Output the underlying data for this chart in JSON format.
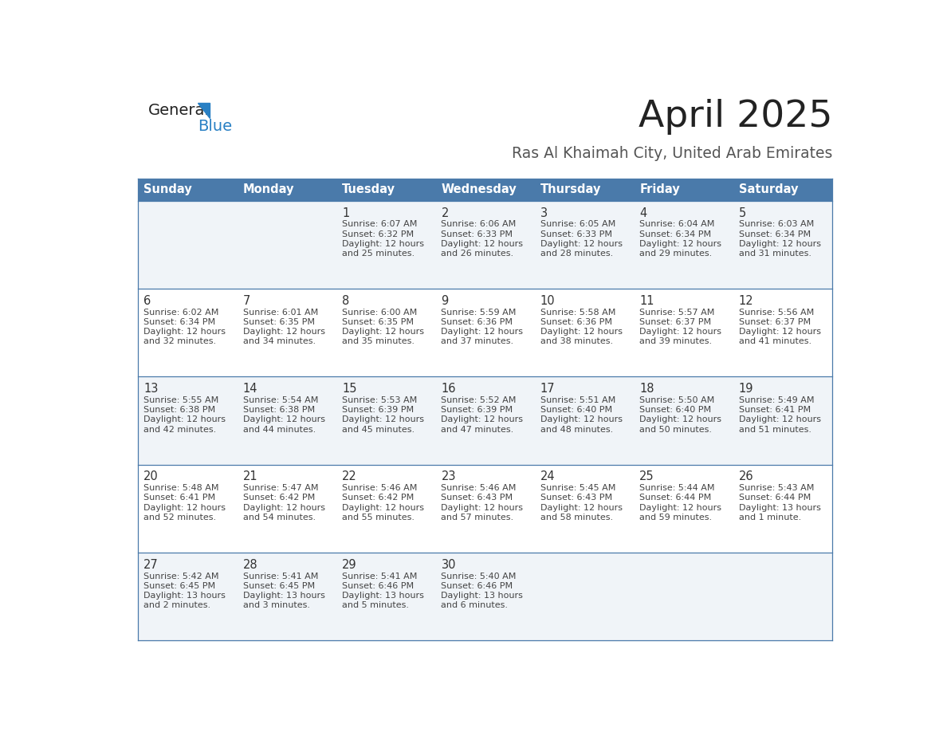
{
  "title": "April 2025",
  "subtitle": "Ras Al Khaimah City, United Arab Emirates",
  "days_of_week": [
    "Sunday",
    "Monday",
    "Tuesday",
    "Wednesday",
    "Thursday",
    "Friday",
    "Saturday"
  ],
  "header_bg": "#4a7aaa",
  "header_text": "#ffffff",
  "row_bg_odd": "#f0f4f8",
  "row_bg_even": "#ffffff",
  "cell_border": "#4a7aaa",
  "day_num_color": "#333333",
  "info_text_color": "#444444",
  "title_color": "#222222",
  "subtitle_color": "#555555",
  "logo_general_color": "#222222",
  "logo_blue_color": "#2980c4",
  "calendar_data": [
    {
      "day": 1,
      "col": 2,
      "row": 0,
      "sunrise": "6:07 AM",
      "sunset": "6:32 PM",
      "daylight_line1": "12 hours",
      "daylight_line2": "and 25 minutes."
    },
    {
      "day": 2,
      "col": 3,
      "row": 0,
      "sunrise": "6:06 AM",
      "sunset": "6:33 PM",
      "daylight_line1": "12 hours",
      "daylight_line2": "and 26 minutes."
    },
    {
      "day": 3,
      "col": 4,
      "row": 0,
      "sunrise": "6:05 AM",
      "sunset": "6:33 PM",
      "daylight_line1": "12 hours",
      "daylight_line2": "and 28 minutes."
    },
    {
      "day": 4,
      "col": 5,
      "row": 0,
      "sunrise": "6:04 AM",
      "sunset": "6:34 PM",
      "daylight_line1": "12 hours",
      "daylight_line2": "and 29 minutes."
    },
    {
      "day": 5,
      "col": 6,
      "row": 0,
      "sunrise": "6:03 AM",
      "sunset": "6:34 PM",
      "daylight_line1": "12 hours",
      "daylight_line2": "and 31 minutes."
    },
    {
      "day": 6,
      "col": 0,
      "row": 1,
      "sunrise": "6:02 AM",
      "sunset": "6:34 PM",
      "daylight_line1": "12 hours",
      "daylight_line2": "and 32 minutes."
    },
    {
      "day": 7,
      "col": 1,
      "row": 1,
      "sunrise": "6:01 AM",
      "sunset": "6:35 PM",
      "daylight_line1": "12 hours",
      "daylight_line2": "and 34 minutes."
    },
    {
      "day": 8,
      "col": 2,
      "row": 1,
      "sunrise": "6:00 AM",
      "sunset": "6:35 PM",
      "daylight_line1": "12 hours",
      "daylight_line2": "and 35 minutes."
    },
    {
      "day": 9,
      "col": 3,
      "row": 1,
      "sunrise": "5:59 AM",
      "sunset": "6:36 PM",
      "daylight_line1": "12 hours",
      "daylight_line2": "and 37 minutes."
    },
    {
      "day": 10,
      "col": 4,
      "row": 1,
      "sunrise": "5:58 AM",
      "sunset": "6:36 PM",
      "daylight_line1": "12 hours",
      "daylight_line2": "and 38 minutes."
    },
    {
      "day": 11,
      "col": 5,
      "row": 1,
      "sunrise": "5:57 AM",
      "sunset": "6:37 PM",
      "daylight_line1": "12 hours",
      "daylight_line2": "and 39 minutes."
    },
    {
      "day": 12,
      "col": 6,
      "row": 1,
      "sunrise": "5:56 AM",
      "sunset": "6:37 PM",
      "daylight_line1": "12 hours",
      "daylight_line2": "and 41 minutes."
    },
    {
      "day": 13,
      "col": 0,
      "row": 2,
      "sunrise": "5:55 AM",
      "sunset": "6:38 PM",
      "daylight_line1": "12 hours",
      "daylight_line2": "and 42 minutes."
    },
    {
      "day": 14,
      "col": 1,
      "row": 2,
      "sunrise": "5:54 AM",
      "sunset": "6:38 PM",
      "daylight_line1": "12 hours",
      "daylight_line2": "and 44 minutes."
    },
    {
      "day": 15,
      "col": 2,
      "row": 2,
      "sunrise": "5:53 AM",
      "sunset": "6:39 PM",
      "daylight_line1": "12 hours",
      "daylight_line2": "and 45 minutes."
    },
    {
      "day": 16,
      "col": 3,
      "row": 2,
      "sunrise": "5:52 AM",
      "sunset": "6:39 PM",
      "daylight_line1": "12 hours",
      "daylight_line2": "and 47 minutes."
    },
    {
      "day": 17,
      "col": 4,
      "row": 2,
      "sunrise": "5:51 AM",
      "sunset": "6:40 PM",
      "daylight_line1": "12 hours",
      "daylight_line2": "and 48 minutes."
    },
    {
      "day": 18,
      "col": 5,
      "row": 2,
      "sunrise": "5:50 AM",
      "sunset": "6:40 PM",
      "daylight_line1": "12 hours",
      "daylight_line2": "and 50 minutes."
    },
    {
      "day": 19,
      "col": 6,
      "row": 2,
      "sunrise": "5:49 AM",
      "sunset": "6:41 PM",
      "daylight_line1": "12 hours",
      "daylight_line2": "and 51 minutes."
    },
    {
      "day": 20,
      "col": 0,
      "row": 3,
      "sunrise": "5:48 AM",
      "sunset": "6:41 PM",
      "daylight_line1": "12 hours",
      "daylight_line2": "and 52 minutes."
    },
    {
      "day": 21,
      "col": 1,
      "row": 3,
      "sunrise": "5:47 AM",
      "sunset": "6:42 PM",
      "daylight_line1": "12 hours",
      "daylight_line2": "and 54 minutes."
    },
    {
      "day": 22,
      "col": 2,
      "row": 3,
      "sunrise": "5:46 AM",
      "sunset": "6:42 PM",
      "daylight_line1": "12 hours",
      "daylight_line2": "and 55 minutes."
    },
    {
      "day": 23,
      "col": 3,
      "row": 3,
      "sunrise": "5:46 AM",
      "sunset": "6:43 PM",
      "daylight_line1": "12 hours",
      "daylight_line2": "and 57 minutes."
    },
    {
      "day": 24,
      "col": 4,
      "row": 3,
      "sunrise": "5:45 AM",
      "sunset": "6:43 PM",
      "daylight_line1": "12 hours",
      "daylight_line2": "and 58 minutes."
    },
    {
      "day": 25,
      "col": 5,
      "row": 3,
      "sunrise": "5:44 AM",
      "sunset": "6:44 PM",
      "daylight_line1": "12 hours",
      "daylight_line2": "and 59 minutes."
    },
    {
      "day": 26,
      "col": 6,
      "row": 3,
      "sunrise": "5:43 AM",
      "sunset": "6:44 PM",
      "daylight_line1": "13 hours",
      "daylight_line2": "and 1 minute."
    },
    {
      "day": 27,
      "col": 0,
      "row": 4,
      "sunrise": "5:42 AM",
      "sunset": "6:45 PM",
      "daylight_line1": "13 hours",
      "daylight_line2": "and 2 minutes."
    },
    {
      "day": 28,
      "col": 1,
      "row": 4,
      "sunrise": "5:41 AM",
      "sunset": "6:45 PM",
      "daylight_line1": "13 hours",
      "daylight_line2": "and 3 minutes."
    },
    {
      "day": 29,
      "col": 2,
      "row": 4,
      "sunrise": "5:41 AM",
      "sunset": "6:46 PM",
      "daylight_line1": "13 hours",
      "daylight_line2": "and 5 minutes."
    },
    {
      "day": 30,
      "col": 3,
      "row": 4,
      "sunrise": "5:40 AM",
      "sunset": "6:46 PM",
      "daylight_line1": "13 hours",
      "daylight_line2": "and 6 minutes."
    }
  ],
  "num_rows": 5,
  "num_cols": 7
}
